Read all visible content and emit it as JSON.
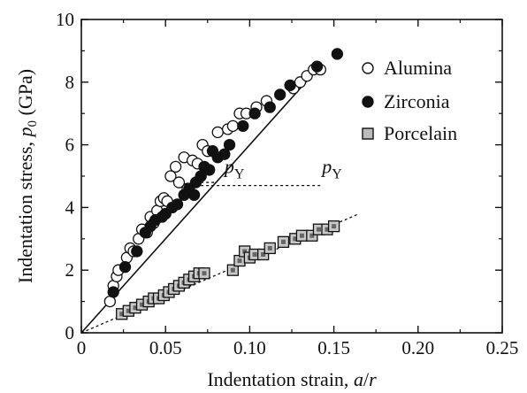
{
  "chart_data": {
    "type": "scatter",
    "xlabel": "Indentation strain, a/r",
    "ylabel": "Indentation stress, p0 (GPa)",
    "xlim": [
      0,
      0.25
    ],
    "ylim": [
      0,
      10
    ],
    "xticks": [
      "0",
      "0.05",
      "0.10",
      "0.15",
      "0.20",
      "0.25"
    ],
    "yticks": [
      "0",
      "2",
      "4",
      "6",
      "8",
      "10"
    ],
    "grid": false,
    "legend_position": "right",
    "series": [
      {
        "name": "Alumina",
        "marker": "open-circle",
        "points": [
          [
            0.017,
            1.0
          ],
          [
            0.019,
            1.5
          ],
          [
            0.021,
            1.8
          ],
          [
            0.022,
            2.0
          ],
          [
            0.027,
            2.4
          ],
          [
            0.029,
            2.7
          ],
          [
            0.031,
            2.6
          ],
          [
            0.034,
            3.0
          ],
          [
            0.036,
            3.3
          ],
          [
            0.039,
            3.2
          ],
          [
            0.041,
            3.7
          ],
          [
            0.043,
            3.5
          ],
          [
            0.045,
            3.9
          ],
          [
            0.047,
            4.2
          ],
          [
            0.049,
            4.3
          ],
          [
            0.051,
            4.2
          ],
          [
            0.053,
            5.0
          ],
          [
            0.056,
            5.3
          ],
          [
            0.058,
            4.8
          ],
          [
            0.061,
            5.6
          ],
          [
            0.063,
            4.6
          ],
          [
            0.066,
            5.5
          ],
          [
            0.069,
            5.4
          ],
          [
            0.072,
            6.0
          ],
          [
            0.075,
            5.8
          ],
          [
            0.081,
            6.4
          ],
          [
            0.087,
            6.5
          ],
          [
            0.09,
            6.6
          ],
          [
            0.094,
            7.0
          ],
          [
            0.098,
            7.0
          ],
          [
            0.104,
            7.2
          ],
          [
            0.11,
            7.4
          ],
          [
            0.126,
            7.8
          ],
          [
            0.13,
            8.0
          ],
          [
            0.134,
            8.2
          ],
          [
            0.138,
            8.4
          ],
          [
            0.142,
            8.4
          ]
        ]
      },
      {
        "name": "Zirconia",
        "marker": "filled-circle",
        "points": [
          [
            0.019,
            1.3
          ],
          [
            0.026,
            2.1
          ],
          [
            0.033,
            2.6
          ],
          [
            0.038,
            3.2
          ],
          [
            0.041,
            3.4
          ],
          [
            0.044,
            3.6
          ],
          [
            0.048,
            3.7
          ],
          [
            0.05,
            3.8
          ],
          [
            0.054,
            4.0
          ],
          [
            0.057,
            4.1
          ],
          [
            0.061,
            4.4
          ],
          [
            0.064,
            4.6
          ],
          [
            0.067,
            4.4
          ],
          [
            0.068,
            4.8
          ],
          [
            0.071,
            5.0
          ],
          [
            0.073,
            5.3
          ],
          [
            0.076,
            5.2
          ],
          [
            0.078,
            5.8
          ],
          [
            0.081,
            5.6
          ],
          [
            0.085,
            5.7
          ],
          [
            0.088,
            6.0
          ],
          [
            0.096,
            6.6
          ],
          [
            0.103,
            7.0
          ],
          [
            0.112,
            7.2
          ],
          [
            0.118,
            7.6
          ],
          [
            0.124,
            7.9
          ],
          [
            0.14,
            8.5
          ],
          [
            0.152,
            8.9
          ]
        ]
      },
      {
        "name": "Porcelain",
        "marker": "hatched-square",
        "points": [
          [
            0.024,
            0.6
          ],
          [
            0.028,
            0.7
          ],
          [
            0.032,
            0.8
          ],
          [
            0.036,
            0.9
          ],
          [
            0.04,
            1.0
          ],
          [
            0.043,
            1.1
          ],
          [
            0.046,
            1.1
          ],
          [
            0.049,
            1.2
          ],
          [
            0.052,
            1.3
          ],
          [
            0.055,
            1.4
          ],
          [
            0.058,
            1.5
          ],
          [
            0.061,
            1.6
          ],
          [
            0.064,
            1.7
          ],
          [
            0.067,
            1.8
          ],
          [
            0.07,
            1.9
          ],
          [
            0.073,
            1.9
          ],
          [
            0.09,
            2.0
          ],
          [
            0.094,
            2.3
          ],
          [
            0.097,
            2.6
          ],
          [
            0.1,
            2.4
          ],
          [
            0.103,
            2.5
          ],
          [
            0.108,
            2.5
          ],
          [
            0.112,
            2.7
          ],
          [
            0.12,
            2.9
          ],
          [
            0.127,
            3.0
          ],
          [
            0.131,
            3.1
          ],
          [
            0.137,
            3.1
          ],
          [
            0.141,
            3.3
          ],
          [
            0.146,
            3.3
          ],
          [
            0.15,
            3.4
          ]
        ]
      }
    ],
    "lines": [
      {
        "style": "solid",
        "points": [
          [
            0,
            0
          ],
          [
            0.14,
            8.4
          ]
        ]
      },
      {
        "style": "dashed",
        "points": [
          [
            0,
            0
          ],
          [
            0.165,
            3.8
          ]
        ]
      },
      {
        "style": "dashed",
        "points": [
          [
            0.071,
            4.8
          ],
          [
            0.08,
            4.8
          ]
        ]
      },
      {
        "style": "dashed",
        "points": [
          [
            0.071,
            4.7
          ],
          [
            0.143,
            4.7
          ]
        ]
      }
    ],
    "annotations": [
      {
        "text": "p",
        "sub": "Y",
        "x": 0.085,
        "y": 5.1
      },
      {
        "text": "p",
        "sub": "Y",
        "x": 0.143,
        "y": 5.1
      }
    ]
  }
}
